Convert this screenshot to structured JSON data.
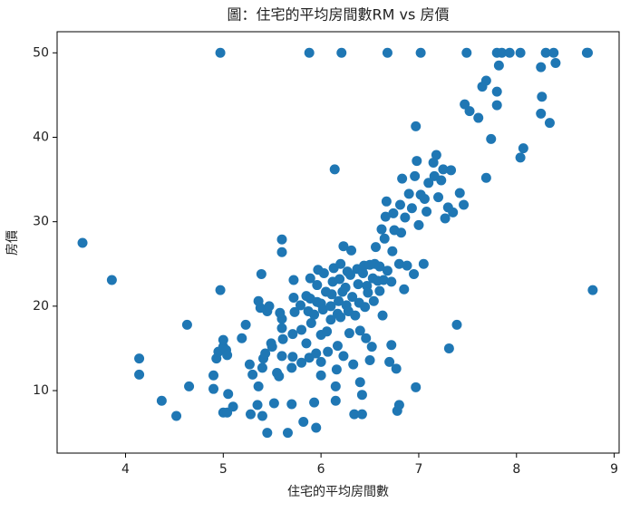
{
  "chart_data": {
    "type": "scatter",
    "title": "圖：住宅的平均房間數RM vs 房價",
    "x_label": "住宅的平均房間數",
    "y_label": "房價",
    "color": "#1f77b4",
    "xlim": [
      3.3,
      9.05
    ],
    "ylim": [
      2.6,
      52.5
    ],
    "xticks": [
      4,
      5,
      6,
      7,
      8,
      9
    ],
    "yticks": [
      10,
      20,
      30,
      40,
      50
    ],
    "grid": false,
    "x": [
      4.97,
      5.88,
      6.21,
      6.68,
      7.02,
      7.49,
      7.8,
      7.85,
      7.93,
      8.04,
      8.3,
      8.38,
      8.72,
      8.73,
      3.56,
      3.86,
      4.14,
      4.14,
      4.37,
      4.52,
      4.63,
      4.65,
      4.97,
      8.78,
      7.39,
      7.31,
      6.97,
      8.04,
      8.07,
      8.25,
      8.26,
      8.34,
      8.4,
      8.25,
      7.82,
      7.8,
      7.8,
      7.69,
      7.65,
      7.47,
      7.52,
      7.61,
      7.74,
      7.69,
      6.97,
      6.14,
      4.9,
      4.9,
      4.93,
      4.95,
      5.0,
      5.0,
      5.03,
      5.04,
      5.0,
      5.04,
      5.05,
      5.1,
      5.19,
      5.23,
      5.27,
      5.3,
      5.28,
      5.35,
      5.4,
      5.45,
      5.36,
      5.4,
      5.41,
      5.43,
      5.5,
      5.49,
      5.38,
      5.36,
      5.39,
      5.45,
      5.47,
      5.52,
      5.55,
      5.57,
      5.6,
      5.61,
      5.6,
      5.6,
      5.58,
      5.6,
      5.6,
      5.66,
      5.7,
      5.7,
      5.71,
      5.71,
      5.73,
      5.72,
      5.72,
      5.79,
      5.8,
      5.8,
      5.82,
      5.85,
      5.85,
      5.87,
      5.88,
      5.89,
      5.89,
      5.9,
      5.93,
      5.93,
      5.95,
      5.95,
      5.96,
      5.96,
      5.97,
      6.0,
      6.0,
      6.0,
      6.0,
      6.02,
      6.03,
      6.05,
      6.06,
      6.07,
      6.1,
      6.1,
      6.11,
      6.12,
      6.13,
      6.15,
      6.15,
      6.16,
      6.17,
      6.17,
      6.18,
      6.19,
      6.2,
      6.2,
      6.22,
      6.23,
      6.23,
      6.25,
      6.26,
      6.27,
      6.28,
      6.29,
      6.3,
      6.31,
      6.32,
      6.33,
      6.34,
      6.35,
      6.37,
      6.38,
      6.39,
      6.4,
      6.4,
      6.42,
      6.42,
      6.43,
      6.44,
      6.45,
      6.46,
      6.47,
      6.48,
      6.5,
      6.5,
      6.52,
      6.53,
      6.54,
      6.55,
      6.56,
      6.58,
      6.6,
      6.6,
      6.62,
      6.63,
      6.64,
      6.65,
      6.66,
      6.67,
      6.68,
      6.7,
      6.72,
      6.72,
      6.73,
      6.74,
      6.75,
      6.77,
      6.78,
      6.8,
      6.8,
      6.81,
      6.82,
      6.83,
      6.85,
      6.86,
      6.88,
      6.9,
      6.93,
      6.95,
      6.96,
      6.98,
      7.0,
      7.02,
      7.05,
      7.06,
      7.08,
      7.1,
      7.15,
      7.16,
      7.18,
      7.2,
      7.23,
      7.25,
      7.27,
      7.3,
      7.33,
      7.35,
      7.42,
      7.46
    ],
    "values": [
      50,
      50,
      50,
      50,
      50,
      50,
      50,
      50,
      50,
      50,
      50,
      50,
      50,
      50,
      27.5,
      23.1,
      13.8,
      11.9,
      8.8,
      7.0,
      17.8,
      10.5,
      21.9,
      21.9,
      17.8,
      15.0,
      10.4,
      37.6,
      38.7,
      42.8,
      44.8,
      41.7,
      48.8,
      48.3,
      48.5,
      43.8,
      45.4,
      46.7,
      46.0,
      43.9,
      43.1,
      42.3,
      39.8,
      35.2,
      41.3,
      36.2,
      10.2,
      11.8,
      13.8,
      14.6,
      15.2,
      16.0,
      14.8,
      14.2,
      7.4,
      7.4,
      9.6,
      8.1,
      16.2,
      17.8,
      13.1,
      11.9,
      7.2,
      8.3,
      7.0,
      5.0,
      10.5,
      12.7,
      13.8,
      14.4,
      15.2,
      15.6,
      19.8,
      20.6,
      23.8,
      19.4,
      20.0,
      8.5,
      12.1,
      11.7,
      14.1,
      16.1,
      17.4,
      18.5,
      19.2,
      26.4,
      27.9,
      5.0,
      8.4,
      12.7,
      14.0,
      16.7,
      19.3,
      21.0,
      23.1,
      20.1,
      13.3,
      17.2,
      6.3,
      15.6,
      21.2,
      19.4,
      13.9,
      20.9,
      23.3,
      18.0,
      8.6,
      19.0,
      5.6,
      14.4,
      20.5,
      22.5,
      24.3,
      20.3,
      16.6,
      11.8,
      13.4,
      19.6,
      23.9,
      21.7,
      17.0,
      14.6,
      18.4,
      20.0,
      21.4,
      22.9,
      24.5,
      8.8,
      10.5,
      12.5,
      15.3,
      19.1,
      20.6,
      23.2,
      18.7,
      25.0,
      21.7,
      14.1,
      27.1,
      22.2,
      20.1,
      24.1,
      19.4,
      16.8,
      23.7,
      26.6,
      21.1,
      13.1,
      7.2,
      18.9,
      24.4,
      22.6,
      20.4,
      17.1,
      11.0,
      7.2,
      9.5,
      23.9,
      24.8,
      19.9,
      16.2,
      22.4,
      21.6,
      24.9,
      13.6,
      15.2,
      23.3,
      20.6,
      25.0,
      27.0,
      23.0,
      21.8,
      24.7,
      29.1,
      18.9,
      23.1,
      28.0,
      30.6,
      32.4,
      24.2,
      13.4,
      15.4,
      22.9,
      26.5,
      31.0,
      29.0,
      12.6,
      7.6,
      8.3,
      25.0,
      32.0,
      28.7,
      35.1,
      22.0,
      30.5,
      24.8,
      33.3,
      31.6,
      23.8,
      35.4,
      37.2,
      29.6,
      33.2,
      25.0,
      32.7,
      31.2,
      34.6,
      37.0,
      35.4,
      37.9,
      32.9,
      34.9,
      36.2,
      30.4,
      31.7,
      36.1,
      31.1,
      33.4,
      32.0
    ]
  }
}
